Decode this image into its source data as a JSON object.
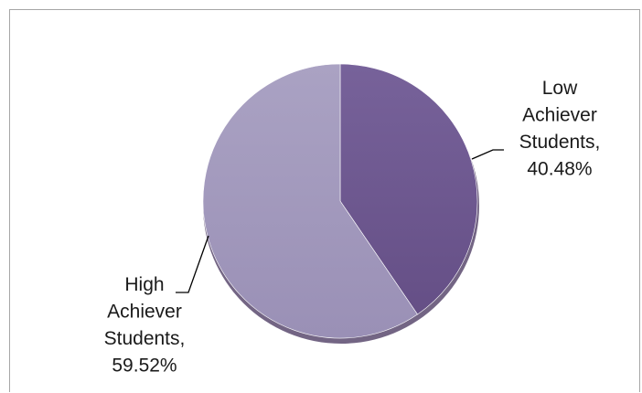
{
  "chart_data": {
    "type": "pie",
    "title": "",
    "slices": [
      {
        "label_lines": [
          "Low",
          "Achiever",
          "Students,",
          "40.48%"
        ],
        "category": "Low Achiever Students",
        "value": 40.48,
        "color": "#6f5a8c"
      },
      {
        "label_lines": [
          "High",
          "Achiever",
          "Students,",
          "59.52%"
        ],
        "category": "High Achiever Students",
        "value": 59.52,
        "color": "#a49bbd"
      }
    ],
    "start_angle_deg": 0,
    "direction": "clockwise",
    "legend": "none",
    "style": "3d-shadow"
  }
}
